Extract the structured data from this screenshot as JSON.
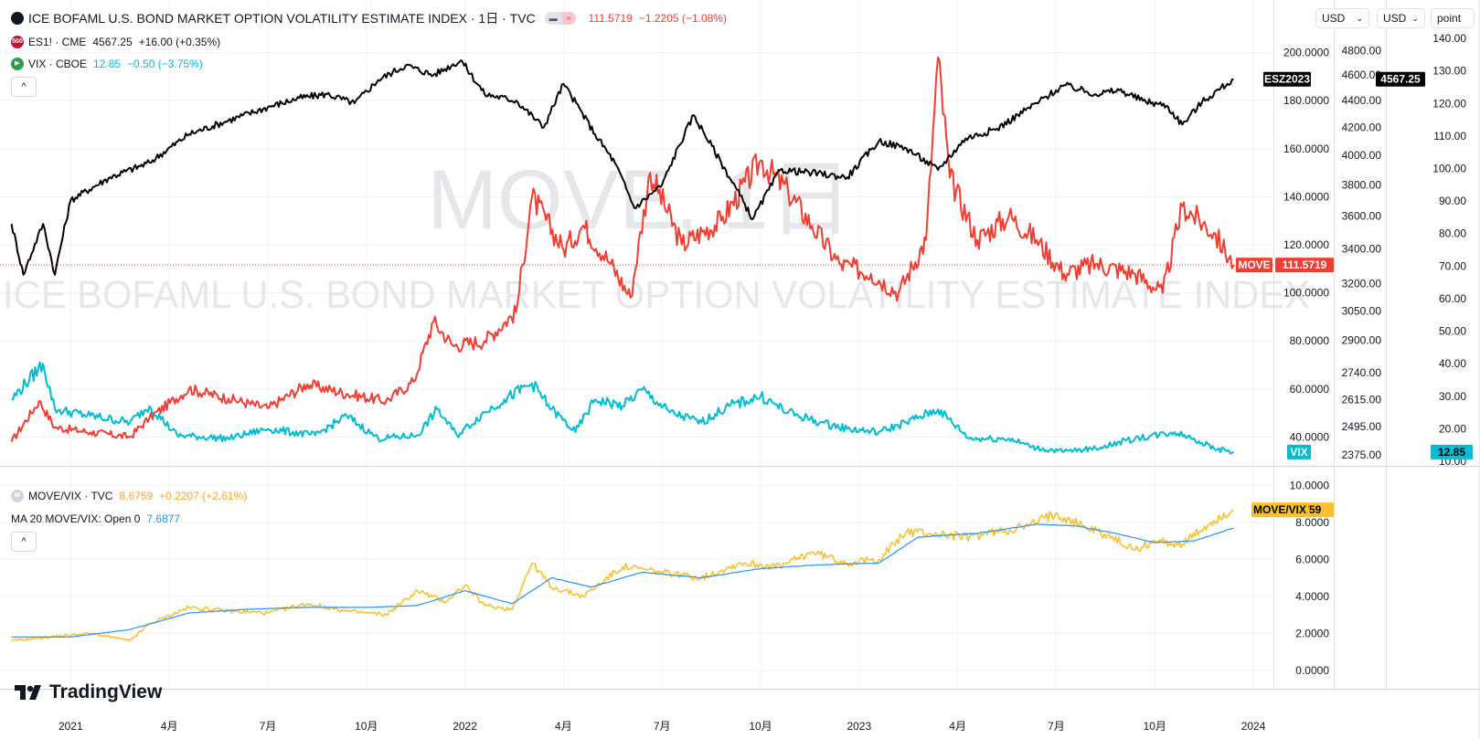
{
  "legend": {
    "main": {
      "title": "ICE BOFAML U.S. BOND MARKET OPTION VOLATILITY ESTIMATE INDEX · 1日 · TVC",
      "price": "111.5719",
      "change": "−1.2205 (−1.08%)"
    },
    "es": {
      "badge": "500",
      "name": "ES1! · CME",
      "price": "4567.25",
      "change": "+16.00 (+0.35%)"
    },
    "vix": {
      "name": "VIX · CBOE",
      "price": "12.85",
      "change": "−0.50 (−3.75%)"
    },
    "ratio": {
      "badge": "M",
      "name": "MOVE/VIX · TVC",
      "price": "8.6759",
      "change": "+0.2207 (+2.61%)"
    },
    "ma": {
      "name": "MA 20 MOVE/VIX: Open 0",
      "value": "7.6877"
    }
  },
  "toolbar": {
    "currency1": "USD",
    "currency2": "USD",
    "unit": "point",
    "collapse_glyph": "^"
  },
  "watermark": {
    "symbol": "MOVE, 1日",
    "description": "ICE BOFAML U.S. BOND MARKET OPTION VOLATILITY ESTIMATE INDEX"
  },
  "brand": {
    "name": "TradingView"
  },
  "colors": {
    "move": "#f23d32",
    "es": "#000000",
    "vix": "#00bcd4",
    "ratio": "#fbc02d",
    "ma": "#2196f3"
  },
  "chart_data": [
    {
      "type": "line",
      "panel": "main",
      "x_ticks": [
        "2021",
        "4月",
        "7月",
        "10月",
        "2022",
        "4月",
        "7月",
        "10月",
        "2023",
        "4月",
        "7月",
        "10月",
        "2024"
      ],
      "axes": [
        {
          "id": "move",
          "ticks": [
            "200.0000",
            "180.0000",
            "160.0000",
            "140.0000",
            "120.0000",
            "100.0000",
            "80.0000",
            "60.0000",
            "40.0000"
          ],
          "range": [
            28,
            212
          ]
        },
        {
          "id": "es",
          "ticks": [
            "4800.00",
            "4600.00",
            "4400.00",
            "4200.00",
            "4000.00",
            "3800.00",
            "3600.00",
            "3400.00",
            "3200.00",
            "3050.00",
            "2900.00",
            "2740.00",
            "2615.00",
            "2495.00",
            "2375.00"
          ],
          "range": [
            2330,
            5030
          ],
          "scale": "log"
        },
        {
          "id": "vix",
          "ticks": [
            "140.00",
            "130.00",
            "120.00",
            "110.00",
            "100.00",
            "90.00",
            "80.00",
            "70.00",
            "60.00",
            "50.00",
            "40.00",
            "30.00",
            "20.00",
            "10.00"
          ],
          "range": [
            8.6,
            144.5
          ]
        }
      ],
      "series": [
        {
          "name": "MOVE",
          "axis": "move",
          "last_label": "111.5719",
          "values": [
            [
              2020.85,
              38
            ],
            [
              2020.92,
              55
            ],
            [
              2020.96,
              44
            ],
            [
              2021.05,
              42
            ],
            [
              2021.15,
              40
            ],
            [
              2021.2,
              48
            ],
            [
              2021.3,
              60
            ],
            [
              2021.4,
              56
            ],
            [
              2021.5,
              52
            ],
            [
              2021.6,
              62
            ],
            [
              2021.7,
              58
            ],
            [
              2021.8,
              55
            ],
            [
              2021.87,
              63
            ],
            [
              2021.92,
              88
            ],
            [
              2021.97,
              78
            ],
            [
              2022.05,
              80
            ],
            [
              2022.13,
              92
            ],
            [
              2022.17,
              140
            ],
            [
              2022.25,
              118
            ],
            [
              2022.3,
              128
            ],
            [
              2022.37,
              112
            ],
            [
              2022.42,
              98
            ],
            [
              2022.47,
              150
            ],
            [
              2022.55,
              120
            ],
            [
              2022.65,
              130
            ],
            [
              2022.75,
              155
            ],
            [
              2022.82,
              142
            ],
            [
              2022.88,
              128
            ],
            [
              2022.95,
              112
            ],
            [
              2023.03,
              108
            ],
            [
              2023.1,
              100
            ],
            [
              2023.17,
              122
            ],
            [
              2023.2,
              198
            ],
            [
              2023.23,
              148
            ],
            [
              2023.3,
              122
            ],
            [
              2023.38,
              132
            ],
            [
              2023.45,
              122
            ],
            [
              2023.52,
              108
            ],
            [
              2023.6,
              112
            ],
            [
              2023.7,
              108
            ],
            [
              2023.77,
              100
            ],
            [
              2023.82,
              136
            ],
            [
              2023.9,
              125
            ],
            [
              2023.95,
              111.57
            ]
          ]
        },
        {
          "name": "ES",
          "axis": "es",
          "last_label": "4567.25",
          "last_tag": "ESZ2023",
          "values": [
            [
              2020.85,
              3550
            ],
            [
              2020.88,
              3250
            ],
            [
              2020.93,
              3550
            ],
            [
              2020.96,
              3250
            ],
            [
              2021.0,
              3700
            ],
            [
              2021.1,
              3850
            ],
            [
              2021.2,
              3950
            ],
            [
              2021.3,
              4150
            ],
            [
              2021.4,
              4250
            ],
            [
              2021.5,
              4350
            ],
            [
              2021.58,
              4420
            ],
            [
              2021.65,
              4450
            ],
            [
              2021.72,
              4380
            ],
            [
              2021.78,
              4560
            ],
            [
              2021.85,
              4680
            ],
            [
              2021.92,
              4600
            ],
            [
              2021.99,
              4720
            ],
            [
              2022.05,
              4450
            ],
            [
              2022.13,
              4400
            ],
            [
              2022.2,
              4200
            ],
            [
              2022.25,
              4530
            ],
            [
              2022.33,
              4150
            ],
            [
              2022.38,
              3950
            ],
            [
              2022.43,
              3650
            ],
            [
              2022.5,
              3800
            ],
            [
              2022.58,
              4290
            ],
            [
              2022.65,
              3950
            ],
            [
              2022.73,
              3580
            ],
            [
              2022.8,
              3900
            ],
            [
              2022.88,
              3880
            ],
            [
              2022.97,
              3850
            ],
            [
              2023.05,
              4100
            ],
            [
              2023.12,
              4050
            ],
            [
              2023.2,
              3900
            ],
            [
              2023.27,
              4120
            ],
            [
              2023.35,
              4190
            ],
            [
              2023.45,
              4380
            ],
            [
              2023.52,
              4520
            ],
            [
              2023.6,
              4450
            ],
            [
              2023.66,
              4480
            ],
            [
              2023.72,
              4400
            ],
            [
              2023.78,
              4360
            ],
            [
              2023.82,
              4220
            ],
            [
              2023.87,
              4390
            ],
            [
              2023.95,
              4567.25
            ]
          ]
        },
        {
          "name": "VIX",
          "axis": "vix",
          "last_label": "12.85",
          "values": [
            [
              2020.85,
              29
            ],
            [
              2020.93,
              40
            ],
            [
              2020.96,
              26
            ],
            [
              2021.05,
              24
            ],
            [
              2021.15,
              22
            ],
            [
              2021.2,
              27
            ],
            [
              2021.27,
              18
            ],
            [
              2021.4,
              17
            ],
            [
              2021.5,
              20
            ],
            [
              2021.62,
              18
            ],
            [
              2021.7,
              24
            ],
            [
              2021.78,
              17
            ],
            [
              2021.88,
              18
            ],
            [
              2021.93,
              26
            ],
            [
              2021.98,
              18
            ],
            [
              2022.05,
              25
            ],
            [
              2022.1,
              29
            ],
            [
              2022.17,
              34
            ],
            [
              2022.22,
              26
            ],
            [
              2022.28,
              19
            ],
            [
              2022.33,
              29
            ],
            [
              2022.4,
              27
            ],
            [
              2022.45,
              32
            ],
            [
              2022.52,
              25
            ],
            [
              2022.6,
              22
            ],
            [
              2022.67,
              27
            ],
            [
              2022.75,
              30
            ],
            [
              2022.82,
              25
            ],
            [
              2022.9,
              22
            ],
            [
              2022.97,
              20
            ],
            [
              2023.05,
              19
            ],
            [
              2023.12,
              22
            ],
            [
              2023.2,
              26
            ],
            [
              2023.28,
              17
            ],
            [
              2023.38,
              17
            ],
            [
              2023.45,
              14
            ],
            [
              2023.52,
              13
            ],
            [
              2023.6,
              14
            ],
            [
              2023.7,
              17
            ],
            [
              2023.8,
              19
            ],
            [
              2023.85,
              17
            ],
            [
              2023.9,
              14
            ],
            [
              2023.95,
              12.85
            ]
          ]
        }
      ]
    },
    {
      "type": "line",
      "panel": "ratio",
      "y_ticks": [
        "10.0000",
        "8.0000",
        "6.0000",
        "4.0000",
        "2.0000",
        "0.0000"
      ],
      "ylim": [
        -1.0,
        11.0
      ],
      "series": [
        {
          "name": "MOVE/VIX",
          "last_label": "8.6759",
          "values": [
            [
              2020.85,
              1.6
            ],
            [
              2020.95,
              1.8
            ],
            [
              2021.05,
              2.0
            ],
            [
              2021.15,
              1.6
            ],
            [
              2021.2,
              2.5
            ],
            [
              2021.3,
              3.4
            ],
            [
              2021.4,
              3.2
            ],
            [
              2021.5,
              3.1
            ],
            [
              2021.6,
              3.6
            ],
            [
              2021.7,
              3.2
            ],
            [
              2021.8,
              3.0
            ],
            [
              2021.88,
              4.3
            ],
            [
              2021.95,
              3.7
            ],
            [
              2022.0,
              4.6
            ],
            [
              2022.05,
              3.5
            ],
            [
              2022.12,
              3.3
            ],
            [
              2022.17,
              5.8
            ],
            [
              2022.22,
              4.5
            ],
            [
              2022.3,
              4.0
            ],
            [
              2022.4,
              5.6
            ],
            [
              2022.5,
              5.3
            ],
            [
              2022.6,
              5.0
            ],
            [
              2022.7,
              5.8
            ],
            [
              2022.8,
              5.6
            ],
            [
              2022.88,
              6.4
            ],
            [
              2022.97,
              5.8
            ],
            [
              2023.05,
              6.0
            ],
            [
              2023.12,
              7.5
            ],
            [
              2023.18,
              7.4
            ],
            [
              2023.28,
              7.2
            ],
            [
              2023.35,
              7.5
            ],
            [
              2023.43,
              7.8
            ],
            [
              2023.5,
              8.5
            ],
            [
              2023.57,
              7.8
            ],
            [
              2023.63,
              7.3
            ],
            [
              2023.7,
              6.5
            ],
            [
              2023.75,
              7.0
            ],
            [
              2023.82,
              6.8
            ],
            [
              2023.9,
              8.1
            ],
            [
              2023.95,
              8.6759
            ]
          ]
        },
        {
          "name": "MA 20 MOVE/VIX",
          "last_label": "7.6877",
          "values": [
            [
              2020.85,
              1.8
            ],
            [
              2021.0,
              1.8
            ],
            [
              2021.15,
              2.2
            ],
            [
              2021.3,
              3.1
            ],
            [
              2021.45,
              3.3
            ],
            [
              2021.6,
              3.4
            ],
            [
              2021.75,
              3.4
            ],
            [
              2021.88,
              3.5
            ],
            [
              2022.0,
              4.3
            ],
            [
              2022.12,
              3.6
            ],
            [
              2022.22,
              5.0
            ],
            [
              2022.32,
              4.5
            ],
            [
              2022.45,
              5.3
            ],
            [
              2022.6,
              5.0
            ],
            [
              2022.75,
              5.5
            ],
            [
              2022.9,
              5.7
            ],
            [
              2023.05,
              5.8
            ],
            [
              2023.15,
              7.2
            ],
            [
              2023.3,
              7.4
            ],
            [
              2023.45,
              7.9
            ],
            [
              2023.55,
              7.8
            ],
            [
              2023.65,
              7.4
            ],
            [
              2023.75,
              6.9
            ],
            [
              2023.85,
              7.0
            ],
            [
              2023.95,
              7.6877
            ]
          ]
        }
      ]
    }
  ]
}
